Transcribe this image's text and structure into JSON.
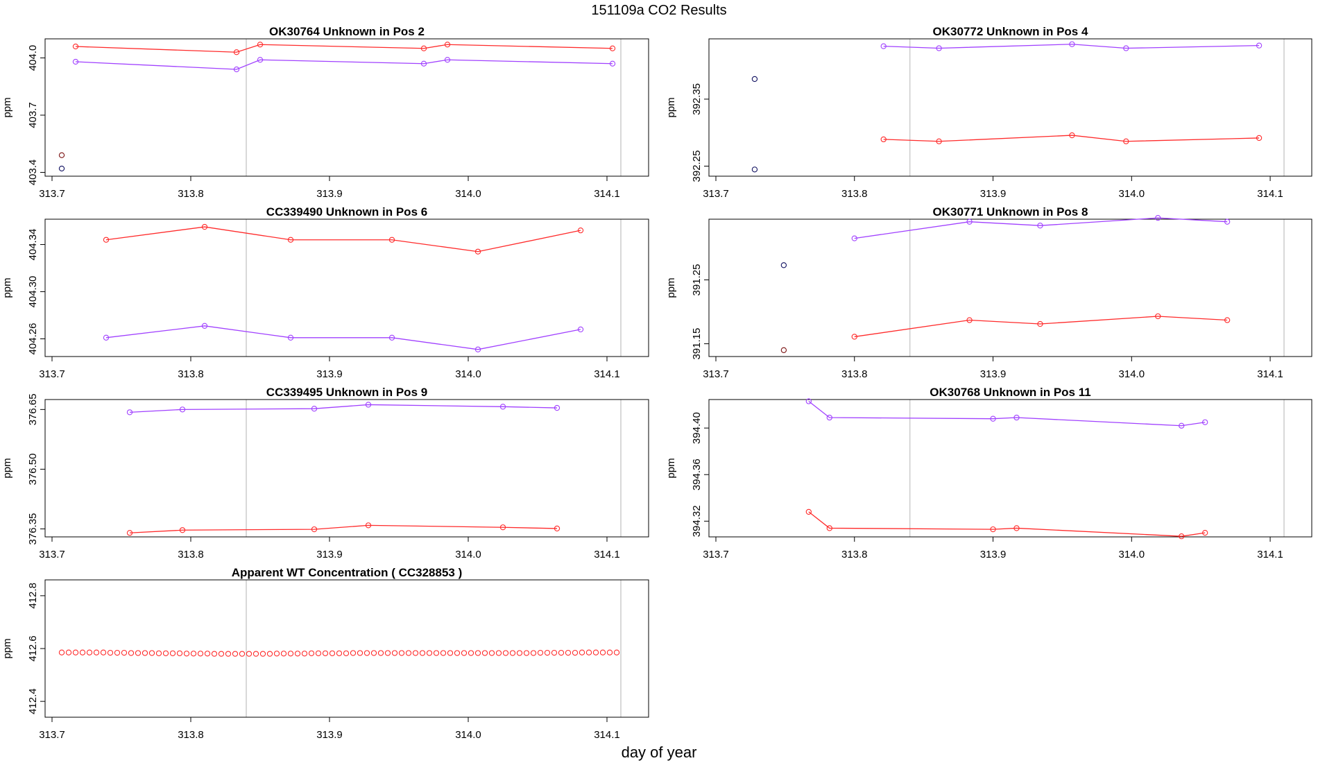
{
  "page_title": "151109a  CO2 Results",
  "x_axis_label": "day of year",
  "y_axis_label": "ppm",
  "colors": {
    "series_red": "#ff2a2a",
    "series_purple": "#a040ff",
    "single": "#101060",
    "vline": "#cccccc",
    "frame": "#000000"
  },
  "chart_data": [
    {
      "type": "line",
      "title": "OK30764    Unknown in Pos 2",
      "xlim": [
        313.695,
        314.13
      ],
      "ylim": [
        403.38,
        404.1
      ],
      "xticks": [
        "313.7",
        "313.8",
        "313.9",
        "314.0",
        "314.1"
      ],
      "yticks": [
        "403.4",
        "403.7",
        "404.0"
      ],
      "vlines": [
        313.84,
        314.11
      ],
      "singles": [
        {
          "x": 313.707,
          "y": 403.49,
          "color": "#7a1010"
        },
        {
          "x": 313.707,
          "y": 403.42,
          "color": "#101060"
        }
      ],
      "series": [
        {
          "name": "red",
          "color": "#ff2a2a",
          "x": [
            313.717,
            313.833,
            313.85,
            313.968,
            313.985,
            314.104
          ],
          "y": [
            404.06,
            404.03,
            404.07,
            404.05,
            404.07,
            404.05
          ]
        },
        {
          "name": "purple",
          "color": "#a040ff",
          "x": [
            313.717,
            313.833,
            313.85,
            313.968,
            313.985,
            314.104
          ],
          "y": [
            403.98,
            403.94,
            403.99,
            403.97,
            403.99,
            403.97
          ]
        }
      ]
    },
    {
      "type": "line",
      "title": "OK30772    Unknown in Pos 4",
      "xlim": [
        313.695,
        314.13
      ],
      "ylim": [
        392.235,
        392.44
      ],
      "xticks": [
        "313.7",
        "313.8",
        "313.9",
        "314.0",
        "314.1"
      ],
      "yticks": [
        "392.25",
        "392.35"
      ],
      "vlines": [
        313.84,
        314.11
      ],
      "singles": [
        {
          "x": 313.728,
          "y": 392.38,
          "color": "#101060"
        },
        {
          "x": 313.728,
          "y": 392.245,
          "color": "#101060"
        }
      ],
      "series": [
        {
          "name": "purple",
          "color": "#a040ff",
          "x": [
            313.821,
            313.861,
            313.957,
            313.996,
            314.092
          ],
          "y": [
            392.429,
            392.426,
            392.432,
            392.426,
            392.43
          ]
        },
        {
          "name": "red",
          "color": "#ff2a2a",
          "x": [
            313.821,
            313.861,
            313.957,
            313.996,
            314.092
          ],
          "y": [
            392.29,
            392.287,
            392.296,
            392.287,
            392.292
          ]
        }
      ]
    },
    {
      "type": "line",
      "title": "CC339490    Unknown in Pos 6",
      "xlim": [
        313.695,
        314.13
      ],
      "ylim": [
        404.245,
        404.3615
      ],
      "xticks": [
        "313.7",
        "313.8",
        "313.9",
        "314.0",
        "314.1"
      ],
      "yticks": [
        "404.26",
        "404.30",
        "404.34"
      ],
      "vlines": [
        313.84,
        314.11
      ],
      "singles": [],
      "series": [
        {
          "name": "red",
          "color": "#ff2a2a",
          "x": [
            313.739,
            313.81,
            313.872,
            313.945,
            314.007,
            314.081
          ],
          "y": [
            404.344,
            404.355,
            404.344,
            404.344,
            404.334,
            404.352
          ]
        },
        {
          "name": "purple",
          "color": "#a040ff",
          "x": [
            313.739,
            313.81,
            313.872,
            313.945,
            314.007,
            314.081
          ],
          "y": [
            404.261,
            404.271,
            404.261,
            404.261,
            404.251,
            404.268
          ]
        }
      ]
    },
    {
      "type": "line",
      "title": "OK30771    Unknown in Pos 8",
      "xlim": [
        313.695,
        314.13
      ],
      "ylim": [
        391.13,
        391.345
      ],
      "xticks": [
        "313.7",
        "313.8",
        "313.9",
        "314.0",
        "314.1"
      ],
      "yticks": [
        "391.15",
        "391.25"
      ],
      "vlines": [
        313.84,
        314.11
      ],
      "singles": [
        {
          "x": 313.749,
          "y": 391.273,
          "color": "#101060"
        },
        {
          "x": 313.749,
          "y": 391.14,
          "color": "#7a1010"
        }
      ],
      "series": [
        {
          "name": "purple",
          "color": "#a040ff",
          "x": [
            313.8,
            313.883,
            313.934,
            314.019,
            314.069
          ],
          "y": [
            391.315,
            391.341,
            391.335,
            391.347,
            391.341
          ]
        },
        {
          "name": "red",
          "color": "#ff2a2a",
          "x": [
            313.8,
            313.883,
            313.934,
            314.019,
            314.069
          ],
          "y": [
            391.161,
            391.187,
            391.181,
            391.193,
            391.187
          ]
        }
      ]
    },
    {
      "type": "line",
      "title": "CC339495    Unknown in Pos 9",
      "xlim": [
        313.695,
        314.13
      ],
      "ylim": [
        376.33,
        376.675
      ],
      "xticks": [
        "313.7",
        "313.8",
        "313.9",
        "314.0",
        "314.1"
      ],
      "yticks": [
        "376.35",
        "376.50",
        "376.65"
      ],
      "vlines": [
        313.84,
        314.11
      ],
      "singles": [],
      "series": [
        {
          "name": "purple",
          "color": "#a040ff",
          "x": [
            313.756,
            313.794,
            313.889,
            313.928,
            314.025,
            314.064
          ],
          "y": [
            376.643,
            376.65,
            376.652,
            376.662,
            376.657,
            376.654
          ]
        },
        {
          "name": "red",
          "color": "#ff2a2a",
          "x": [
            313.756,
            313.794,
            313.889,
            313.928,
            314.025,
            314.064
          ],
          "y": [
            376.34,
            376.347,
            376.349,
            376.359,
            376.354,
            376.351
          ]
        }
      ]
    },
    {
      "type": "line",
      "title": "OK30768    Unknown in Pos 11",
      "xlim": [
        313.695,
        314.13
      ],
      "ylim": [
        394.3065,
        394.4245
      ],
      "xticks": [
        "313.7",
        "313.8",
        "313.9",
        "314.0",
        "314.1"
      ],
      "yticks": [
        "394.32",
        "394.36",
        "394.40"
      ],
      "vlines": [
        313.84,
        314.11
      ],
      "singles": [],
      "series": [
        {
          "name": "purple",
          "color": "#a040ff",
          "x": [
            313.767,
            313.782,
            313.9,
            313.917,
            314.036,
            314.053
          ],
          "y": [
            394.423,
            394.409,
            394.408,
            394.409,
            394.402,
            394.405
          ]
        },
        {
          "name": "red",
          "color": "#ff2a2a",
          "x": [
            313.767,
            313.782,
            313.9,
            313.917,
            314.036,
            314.053
          ],
          "y": [
            394.328,
            394.314,
            394.313,
            394.314,
            394.307,
            394.31
          ]
        }
      ]
    },
    {
      "type": "scatter",
      "title": "Apparent WT Concentration ( CC328853 )",
      "xlim": [
        313.695,
        314.13
      ],
      "ylim": [
        412.34,
        412.86
      ],
      "xticks": [
        "313.7",
        "313.8",
        "313.9",
        "314.0",
        "314.1"
      ],
      "yticks": [
        "412.4",
        "412.6",
        "412.8"
      ],
      "vlines": [
        313.84,
        314.11
      ],
      "singles": [],
      "series": [
        {
          "name": "wt",
          "color": "#ff2a2a",
          "markers_only": true,
          "x": [
            313.707,
            313.712,
            313.717,
            313.722,
            313.727,
            313.732,
            313.737,
            313.742,
            313.747,
            313.752,
            313.757,
            313.762,
            313.767,
            313.772,
            313.777,
            313.782,
            313.787,
            313.792,
            313.797,
            313.802,
            313.807,
            313.812,
            313.817,
            313.822,
            313.827,
            313.832,
            313.837,
            313.842,
            313.847,
            313.852,
            313.857,
            313.862,
            313.867,
            313.872,
            313.877,
            313.882,
            313.887,
            313.892,
            313.897,
            313.902,
            313.907,
            313.912,
            313.917,
            313.922,
            313.927,
            313.932,
            313.937,
            313.942,
            313.947,
            313.952,
            313.957,
            313.962,
            313.967,
            313.972,
            313.977,
            313.982,
            313.987,
            313.992,
            313.997,
            314.002,
            314.007,
            314.012,
            314.017,
            314.022,
            314.027,
            314.032,
            314.037,
            314.042,
            314.047,
            314.052,
            314.057,
            314.062,
            314.067,
            314.072,
            314.077,
            314.082,
            314.087,
            314.092,
            314.097,
            314.102,
            314.107
          ],
          "y": [
            412.585,
            412.585,
            412.585,
            412.585,
            412.585,
            412.585,
            412.585,
            412.584,
            412.584,
            412.584,
            412.583,
            412.583,
            412.583,
            412.583,
            412.582,
            412.582,
            412.582,
            412.582,
            412.581,
            412.581,
            412.581,
            412.581,
            412.58,
            412.58,
            412.58,
            412.58,
            412.58,
            412.58,
            412.58,
            412.58,
            412.58,
            412.581,
            412.581,
            412.581,
            412.581,
            412.581,
            412.582,
            412.582,
            412.582,
            412.582,
            412.582,
            412.582,
            412.583,
            412.583,
            412.583,
            412.583,
            412.583,
            412.583,
            412.583,
            412.583,
            412.583,
            412.583,
            412.583,
            412.583,
            412.583,
            412.583,
            412.583,
            412.583,
            412.583,
            412.583,
            412.583,
            412.583,
            412.583,
            412.583,
            412.583,
            412.583,
            412.583,
            412.583,
            412.583,
            412.584,
            412.584,
            412.584,
            412.584,
            412.584,
            412.584,
            412.585,
            412.585,
            412.585,
            412.585,
            412.585,
            412.585
          ]
        }
      ]
    }
  ]
}
